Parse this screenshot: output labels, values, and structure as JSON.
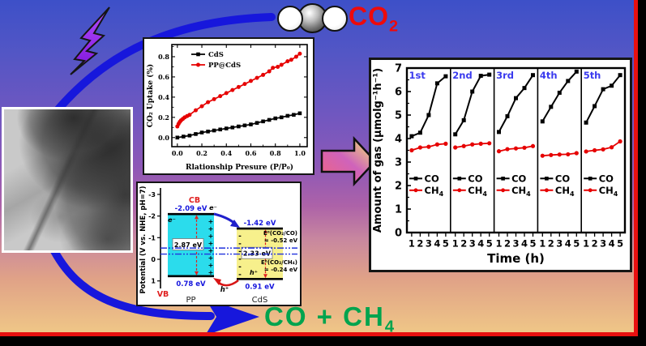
{
  "labels": {
    "co2": {
      "main": "CO",
      "sub": "2"
    },
    "products": {
      "main": "CO  +  CH",
      "sub": "4"
    }
  },
  "icons": {
    "lightning": "lightning-bolt",
    "molecule": "co2-molecule",
    "arrow_top": "curved-arrow-to-co2",
    "arrow_bottom": "curved-arrow-to-products",
    "block_arrow": "gradient-right-arrow",
    "tem": "tem-micrograph"
  },
  "colors": {
    "arrow_blue": "#1717dc",
    "title_red": "#ee0a0a",
    "product_green": "#00a44e",
    "lightning_purple": "#9a2bf2",
    "band_cb_vb_label_red": "#e02020",
    "band_value_blue": "#1515dd",
    "band_transfer_blue": "#2020cc",
    "band_transfer_red": "#d81515",
    "cycle_label_blue": "#3a3aee",
    "series_red": "#e60000",
    "border_red": "#e81010",
    "block_arrow_gradient": [
      "#f2647e",
      "#cf63bb",
      "#f6ee6b"
    ],
    "background_gradient": [
      "#3d50c8",
      "#6f57c0",
      "#8d58b7",
      "#c8879f",
      "#e0a287",
      "#efc687"
    ]
  },
  "chart_data": [
    {
      "id": "co2-uptake",
      "type": "line",
      "title": "",
      "xlabel": "Rlationship Presure (P/P₀)",
      "ylabel": "CO₂ Uptake (%)",
      "xlim": [
        0,
        1.0
      ],
      "ylim": [
        0,
        0.9
      ],
      "xticks": [
        "0.0",
        "0.2",
        "0.4",
        "0.6",
        "0.8",
        "1.0"
      ],
      "yticks": [
        "0.0",
        "0.2",
        "0.4",
        "0.6",
        "0.8"
      ],
      "legend_position": "top-left",
      "series": [
        {
          "name": "CdS",
          "color": "#000000",
          "marker": "square",
          "points": [
            [
              0,
              0
            ],
            [
              0.05,
              0.01
            ],
            [
              0.1,
              0.02
            ],
            [
              0.15,
              0.035
            ],
            [
              0.2,
              0.05
            ],
            [
              0.25,
              0.06
            ],
            [
              0.3,
              0.07
            ],
            [
              0.35,
              0.08
            ],
            [
              0.4,
              0.09
            ],
            [
              0.45,
              0.1
            ],
            [
              0.5,
              0.11
            ],
            [
              0.55,
              0.12
            ],
            [
              0.6,
              0.13
            ],
            [
              0.65,
              0.145
            ],
            [
              0.7,
              0.16
            ],
            [
              0.75,
              0.175
            ],
            [
              0.8,
              0.19
            ],
            [
              0.85,
              0.2
            ],
            [
              0.9,
              0.215
            ],
            [
              0.95,
              0.225
            ],
            [
              1,
              0.24
            ]
          ]
        },
        {
          "name": "PP@CdS",
          "color": "#e60000",
          "marker": "circle",
          "points": [
            [
              0,
              0.11
            ],
            [
              0.01,
              0.135
            ],
            [
              0.02,
              0.155
            ],
            [
              0.03,
              0.17
            ],
            [
              0.045,
              0.185
            ],
            [
              0.06,
              0.2
            ],
            [
              0.08,
              0.213
            ],
            [
              0.1,
              0.225
            ],
            [
              0.15,
              0.27
            ],
            [
              0.2,
              0.31
            ],
            [
              0.25,
              0.35
            ],
            [
              0.3,
              0.38
            ],
            [
              0.35,
              0.41
            ],
            [
              0.4,
              0.44
            ],
            [
              0.45,
              0.47
            ],
            [
              0.5,
              0.5
            ],
            [
              0.55,
              0.53
            ],
            [
              0.6,
              0.56
            ],
            [
              0.65,
              0.59
            ],
            [
              0.7,
              0.62
            ],
            [
              0.75,
              0.655
            ],
            [
              0.78,
              0.69
            ],
            [
              0.82,
              0.7
            ],
            [
              0.85,
              0.72
            ],
            [
              0.9,
              0.755
            ],
            [
              0.93,
              0.77
            ],
            [
              0.97,
              0.8
            ],
            [
              1,
              0.83
            ]
          ]
        }
      ]
    },
    {
      "id": "band-diagram",
      "type": "band-diagram",
      "ylabel": "Potential (V vs. NHE, pH=7)",
      "yticks": [
        -3,
        -2,
        -1,
        0,
        1
      ],
      "cb_label": "CB",
      "vb_label": "VB",
      "electron_label": "e⁻",
      "hole_label": "h⁺",
      "materials": [
        {
          "name": "PP",
          "cb": -2.09,
          "vb": 0.78,
          "cb_text": "-2.09 eV",
          "vb_text": "0.78 eV",
          "gap_text": "2.87 eV",
          "fill": "#2bdcec"
        },
        {
          "name": "CdS",
          "cb": -1.42,
          "vb": 0.91,
          "cb_text": "-1.42 eV",
          "vb_text": "0.91 eV",
          "gap_text": "2.33 eV",
          "fill": "#f7f08c"
        }
      ],
      "redox_levels": [
        {
          "label": "E⁰(CO₂/CO)",
          "value_text": "= -0.52 eV",
          "potential": -0.52
        },
        {
          "label": "E⁰(CO₂/CH₄)",
          "value_text": "= -0.24 eV",
          "potential": -0.24
        }
      ]
    },
    {
      "id": "cycling-performance",
      "type": "line-multipanel",
      "xlabel": "Time (h)",
      "ylabel": "Amount of gas (μmolg⁻¹h⁻¹)",
      "x": [
        1,
        2,
        3,
        4,
        5
      ],
      "ylim": [
        0,
        7
      ],
      "yticks": [
        0,
        1,
        2,
        3,
        4,
        5,
        6,
        7
      ],
      "series_styles": [
        {
          "name": "CO",
          "color": "#000000",
          "marker": "square"
        },
        {
          "name": "CH₄",
          "display": {
            "main": "CH",
            "sub": "4"
          },
          "color": "#e60000",
          "marker": "circle"
        }
      ],
      "panels": [
        {
          "label": "1st",
          "CO": [
            4.1,
            4.25,
            5.0,
            6.35,
            6.65
          ],
          "CH4": [
            3.5,
            3.62,
            3.65,
            3.75,
            3.78
          ]
        },
        {
          "label": "2nd",
          "CO": [
            4.18,
            4.78,
            6.0,
            6.67,
            6.72
          ],
          "CH4": [
            3.62,
            3.68,
            3.75,
            3.78,
            3.8
          ]
        },
        {
          "label": "3rd",
          "CO": [
            4.28,
            4.95,
            5.72,
            6.15,
            6.7
          ],
          "CH4": [
            3.46,
            3.55,
            3.58,
            3.61,
            3.68
          ]
        },
        {
          "label": "4th",
          "CO": [
            4.73,
            5.35,
            5.95,
            6.45,
            6.85
          ],
          "CH4": [
            3.27,
            3.3,
            3.32,
            3.33,
            3.38
          ]
        },
        {
          "label": "5th",
          "CO": [
            4.68,
            5.38,
            6.1,
            6.25,
            6.7
          ],
          "CH4": [
            3.45,
            3.5,
            3.54,
            3.63,
            3.88
          ]
        }
      ]
    }
  ]
}
